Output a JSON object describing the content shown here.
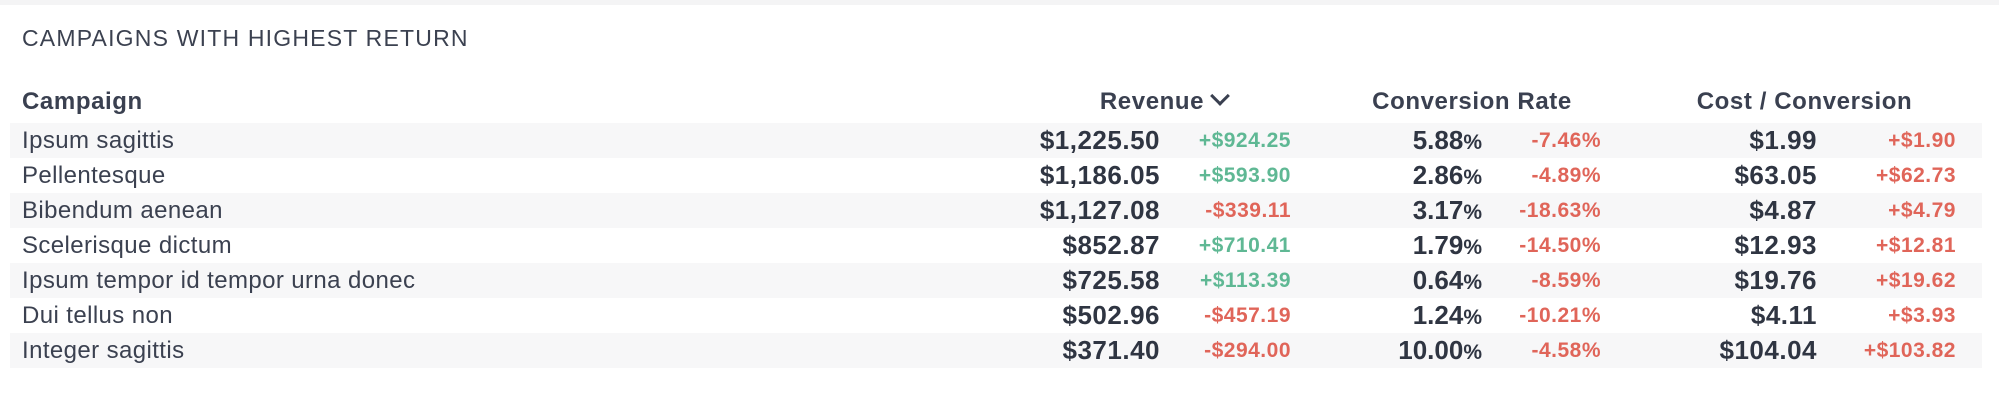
{
  "panel": {
    "title": "CAMPAIGNS WITH HIGHEST RETURN"
  },
  "colors": {
    "positive": "#5fb894",
    "negative": "#e06559",
    "text": "#2f3542",
    "row_stripe": "#f7f7f8"
  },
  "table": {
    "headers": {
      "campaign": "Campaign",
      "revenue": "Revenue",
      "conversion_rate": "Conversion Rate",
      "cost_per_conversion": "Cost / Conversion"
    },
    "sort": {
      "column": "Revenue",
      "direction": "descending",
      "icon": "chevron-down-icon"
    },
    "rows": [
      {
        "campaign": "Ipsum sagittis",
        "revenue": "$1,225.50",
        "revenue_delta": "+$924.25",
        "revenue_delta_sign": "pos",
        "rate": "5.88",
        "rate_unit": "%",
        "rate_delta": "-7.46%",
        "cost": "$1.99",
        "cost_delta": "+$1.90"
      },
      {
        "campaign": "Pellentesque",
        "revenue": "$1,186.05",
        "revenue_delta": "+$593.90",
        "revenue_delta_sign": "pos",
        "rate": "2.86",
        "rate_unit": "%",
        "rate_delta": "-4.89%",
        "cost": "$63.05",
        "cost_delta": "+$62.73"
      },
      {
        "campaign": "Bibendum aenean",
        "revenue": "$1,127.08",
        "revenue_delta": "-$339.11",
        "revenue_delta_sign": "neg",
        "rate": "3.17",
        "rate_unit": "%",
        "rate_delta": "-18.63%",
        "cost": "$4.87",
        "cost_delta": "+$4.79"
      },
      {
        "campaign": "Scelerisque dictum",
        "revenue": "$852.87",
        "revenue_delta": "+$710.41",
        "revenue_delta_sign": "pos",
        "rate": "1.79",
        "rate_unit": "%",
        "rate_delta": "-14.50%",
        "cost": "$12.93",
        "cost_delta": "+$12.81"
      },
      {
        "campaign": "Ipsum tempor id tempor urna donec",
        "revenue": "$725.58",
        "revenue_delta": "+$113.39",
        "revenue_delta_sign": "pos",
        "rate": "0.64",
        "rate_unit": "%",
        "rate_delta": "-8.59%",
        "cost": "$19.76",
        "cost_delta": "+$19.62"
      },
      {
        "campaign": "Dui tellus non",
        "revenue": "$502.96",
        "revenue_delta": "-$457.19",
        "revenue_delta_sign": "neg",
        "rate": "1.24",
        "rate_unit": "%",
        "rate_delta": "-10.21%",
        "cost": "$4.11",
        "cost_delta": "+$3.93"
      },
      {
        "campaign": "Integer sagittis",
        "revenue": "$371.40",
        "revenue_delta": "-$294.00",
        "revenue_delta_sign": "neg",
        "rate": "10.00",
        "rate_unit": "%",
        "rate_delta": "-4.58%",
        "cost": "$104.04",
        "cost_delta": "+$103.82"
      }
    ]
  }
}
